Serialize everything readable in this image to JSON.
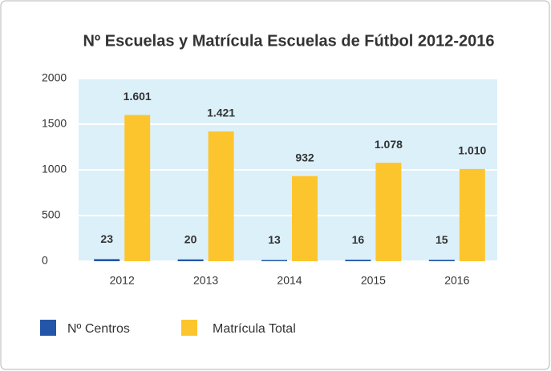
{
  "chart_data": {
    "type": "bar",
    "title": "Nº Escuelas y Matrícula Escuelas de Fútbol 2012-2016",
    "categories": [
      "2012",
      "2013",
      "2014",
      "2015",
      "2016"
    ],
    "series": [
      {
        "name": "Nº Centros",
        "color": "#2356a8",
        "values": [
          23,
          20,
          13,
          16,
          15
        ]
      },
      {
        "name": "Matrícula Total",
        "color": "#fdc52d",
        "values": [
          1601,
          1421,
          932,
          1078,
          1010
        ],
        "value_labels": [
          "1.601",
          "1.421",
          "932",
          "1.078",
          "1.010"
        ]
      }
    ],
    "ylim": [
      0,
      2000
    ],
    "yticks": [
      0,
      500,
      1000,
      1500,
      2000
    ],
    "grid": true,
    "legend": "bottom"
  }
}
